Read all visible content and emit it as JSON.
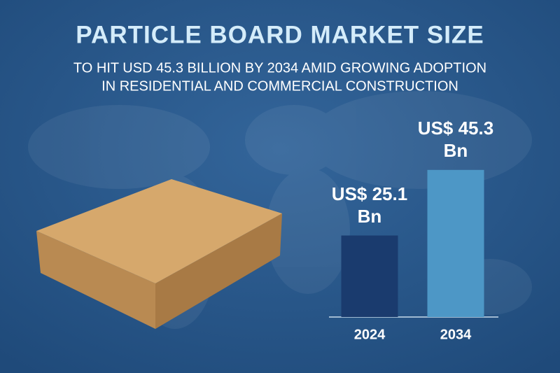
{
  "chart_data": {
    "type": "bar",
    "title": "PARTICLE BOARD MARKET SIZE",
    "subtitle": [
      "TO HIT USD 45.3 BILLION BY 2034 AMID GROWING ADOPTION",
      "IN RESIDENTIAL AND COMMERCIAL CONSTRUCTION"
    ],
    "categories": [
      "2024",
      "2034"
    ],
    "values": [
      25.1,
      45.3
    ],
    "value_labels": [
      "US$ 25.1 Bn",
      "US$ 45.3 Bn"
    ],
    "colors": [
      "#1a3b6e",
      "#4d97c6"
    ]
  }
}
